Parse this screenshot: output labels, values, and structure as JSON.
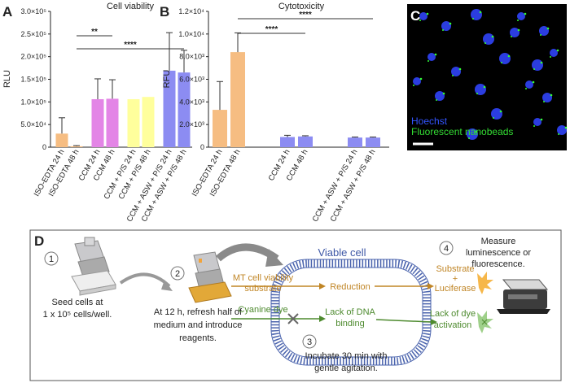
{
  "panel_labels": [
    "A",
    "B",
    "C",
    "D"
  ],
  "chart_data": [
    {
      "type": "bar",
      "title": "Cell viability",
      "ylabel": "RLU",
      "categories": [
        "ISO-EDTA 24 h",
        "ISO-EDTA 48 h",
        "CCM 24 h",
        "CCM 48 h",
        "CCM + P/S 24 h",
        "CCM + P/S 48 h",
        "CCM + ASW + P/S 24 h",
        "CCM + ASW + P/S 48 h"
      ],
      "values": [
        30000,
        2000,
        106000,
        107000,
        106000,
        111000,
        169000,
        165000
      ],
      "errors": [
        35000,
        1500,
        45000,
        42000,
        null,
        null,
        84000,
        49000
      ],
      "colors": [
        "#f6bd82",
        "#f6bd82",
        "#e385e6",
        "#e385e6",
        "#ffff9c",
        "#ffff9c",
        "#8c8cf2",
        "#8c8cf2"
      ],
      "ylim": [
        0,
        300000
      ],
      "yticks": [
        0,
        {
          "value": 50000,
          "label": "5.0×10⁴"
        },
        {
          "value": 100000,
          "label": "1.0×10⁵"
        },
        {
          "value": 150000,
          "label": "1.5×10⁵"
        },
        {
          "value": 200000,
          "label": "2.0×10⁵"
        },
        {
          "value": 250000,
          "label": "2.5×10⁵"
        },
        {
          "value": 300000,
          "label": "3.0×10⁵"
        }
      ],
      "comparisons": [
        {
          "label": "**",
          "from": 1,
          "to": 3
        },
        {
          "label": "****",
          "from": 1,
          "to": 7
        }
      ]
    },
    {
      "type": "bar",
      "title": "Cytotoxicity",
      "ylabel": "RFU",
      "categories": [
        "ISO-EDTA 24 h",
        "ISO-EDTA 48 h",
        "CCM 24 h",
        "CCM 48 h",
        "CCM + ASW + P/S 24 h",
        "CCM + ASW + P/S 48 h"
      ],
      "values": [
        3300,
        8400,
        900,
        950,
        850,
        850
      ],
      "errors": [
        2500,
        1700,
        150,
        60,
        50,
        50
      ],
      "colors": [
        "#f6bd82",
        "#f6bd82",
        "#8c8cf2",
        "#8c8cf2",
        "#8c8cf2",
        "#8c8cf2"
      ],
      "ylim": [
        0,
        12000
      ],
      "yticks": [
        0,
        {
          "value": 2000,
          "label": "2.0×10³"
        },
        {
          "value": 4000,
          "label": "4.0×10³"
        },
        {
          "value": 6000,
          "label": "6.0×10³"
        },
        {
          "value": 8000,
          "label": "8.0×10³"
        },
        {
          "value": 10000,
          "label": "1.0×10⁴"
        },
        {
          "value": 12000,
          "label": "1.2×10⁴"
        }
      ],
      "comparisons": [
        {
          "label": "****",
          "from": 1,
          "to": 5
        },
        {
          "label": "****",
          "from": 1,
          "to": 3
        }
      ]
    }
  ],
  "image": {
    "legend": [
      "Hoechst",
      "Fluorescent nanobeads"
    ]
  },
  "diagram": {
    "steps": [
      {
        "number": "1",
        "text": [
          "Seed cells at",
          "1 x 10⁵ cells/well."
        ]
      },
      {
        "number": "2",
        "text": [
          "At 12 h, refresh half of",
          "medium and introduce",
          "reagents."
        ]
      },
      {
        "number": "3",
        "text": [
          "Incubate 30 min with",
          "gentle agitation."
        ]
      },
      {
        "number": "4",
        "text": [
          "Measure",
          "luminescence or",
          "fluorescence."
        ]
      }
    ],
    "cell_label": "Viable cell",
    "viability": {
      "input": [
        "MT cell viability",
        "substrate"
      ],
      "process": "Reduction",
      "output": [
        "Substrate",
        "+",
        "Luciferase"
      ]
    },
    "cytotoxicity": {
      "input": "Cyanine dye",
      "process": [
        "Lack of DNA",
        "binding"
      ],
      "output": [
        "Lack of dye",
        "activation"
      ]
    }
  }
}
